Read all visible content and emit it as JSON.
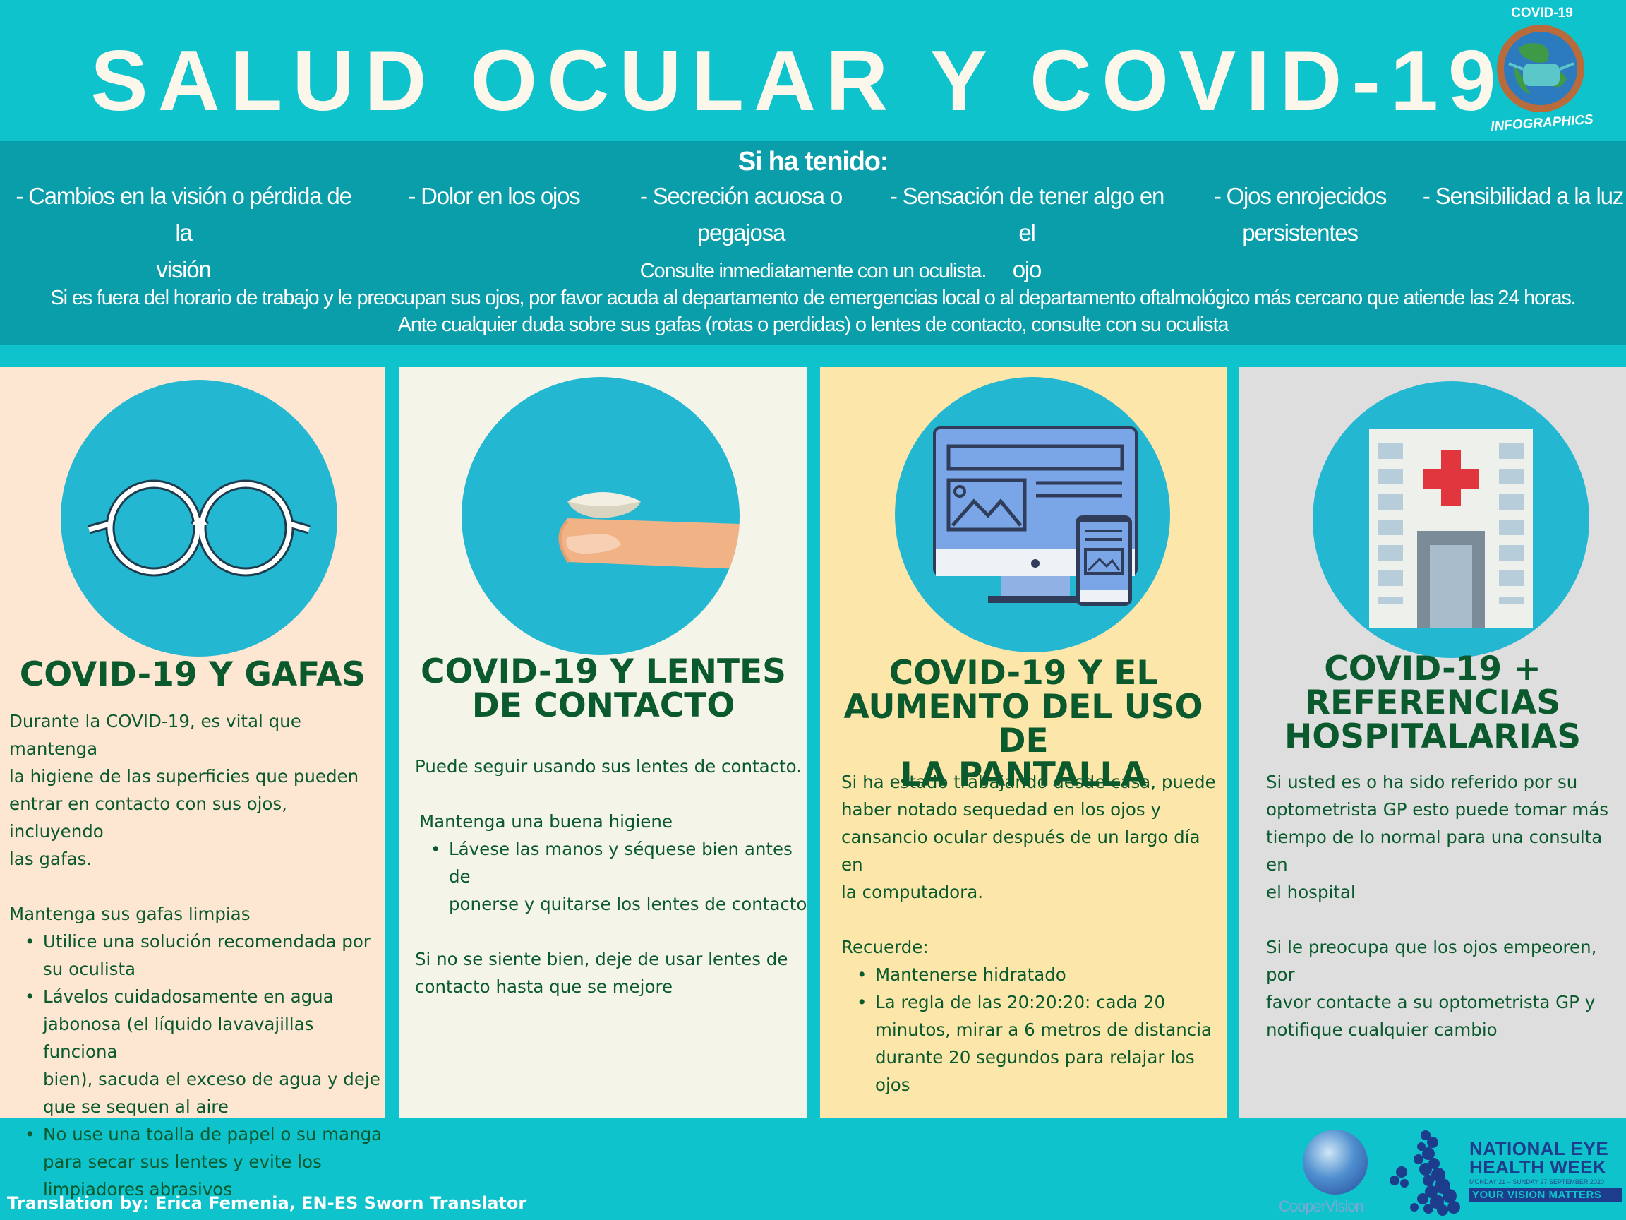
{
  "header": {
    "title": "SALUD OCULAR Y COVID-19",
    "badge_top": "COVID-19",
    "badge_bottom": "INFOGRAPHICS"
  },
  "band": {
    "heading": "Si ha tenido:",
    "symptoms": [
      {
        "line1": "- Cambios en la visión o pérdida de la",
        "line2": "visión"
      },
      {
        "line1": "- Dolor en los ojos",
        "line2": ""
      },
      {
        "line1": "- Secreción acuosa o",
        "line2": "pegajosa"
      },
      {
        "line1": "- Sensación de tener algo en el",
        "line2": "ojo"
      },
      {
        "line1": "- Ojos enrojecidos",
        "line2": "persistentes"
      },
      {
        "line1": "- Sensibilidad  a la luz",
        "line2": ""
      }
    ],
    "advice": [
      "Consulte inmediatamente con un oculista.",
      "Si es fuera del horario de trabajo y le preocupan sus ojos, por favor acuda al departamento de emergencias local o al departamento oftalmológico más cercano que atiende las 24 horas.",
      "Ante cualquier duda sobre sus gafas (rotas o perdidas) o lentes de contacto, consulte con su oculista"
    ]
  },
  "panels": {
    "glasses": {
      "title": "COVID-19 Y GAFAS",
      "intro": [
        "Durante la COVID-19,  es vital que mantenga",
        "la higiene de las superficies  que pueden",
        "entrar en contacto con sus ojos, incluyendo",
        "las gafas."
      ],
      "subhead": "Mantenga sus gafas limpias",
      "bullets": [
        [
          "Utilice una solución recomendada por",
          "su oculista"
        ],
        [
          "Lávelos cuidadosamente en agua",
          "jabonosa (el líquido lavavajillas funciona",
          "bien), sacuda el exceso de agua y deje",
          "que se sequen al aire"
        ],
        [
          "No use una toalla de papel o su manga",
          "para secar sus lentes y evite los",
          "limpiadores  abrasivos"
        ]
      ]
    },
    "contacts": {
      "title_line1": "COVID-19 Y LENTES",
      "title_line2": "DE CONTACTO",
      "intro": "Puede seguir usando sus lentes de contacto.",
      "subhead": "Mantenga una buena higiene",
      "bullets": [
        [
          "Lávese las manos y séquese bien antes de",
          "ponerse y quitarse los lentes de contacto"
        ]
      ],
      "outro": [
        "Si no se siente bien, deje de usar lentes de",
        "contacto hasta que se mejore"
      ]
    },
    "screens": {
      "title_line1": "COVID-19 Y EL",
      "title_line2": "AUMENTO DEL USO DE",
      "title_line3": "LA PANTALLA",
      "intro": [
        "Si ha estado trabajando desde casa, puede",
        "haber notado sequedad en los ojos y",
        "cansancio ocular después de un largo día en",
        "la computadora."
      ],
      "subhead": "Recuerde:",
      "bullets": [
        [
          "Mantenerse hidratado"
        ],
        [
          "La regla de las 20:20:20: cada 20",
          "minutos, mirar a 6 metros de distancia",
          "durante 20 segundos para relajar los",
          "ojos"
        ]
      ]
    },
    "hospital": {
      "title_line1": "COVID-19 +",
      "title_line2": "REFERENCIAS",
      "title_line3": "HOSPITALARIAS",
      "para1": [
        "Si usted es o ha sido referido  por su",
        "optometrista  GP esto puede tomar más",
        "tiempo de lo normal para una consulta en",
        "el hospital"
      ],
      "para2": [
        "Si le preocupa que los ojos empeoren,  por",
        "favor contacte a su optometrista GP y",
        "notifique cualquier cambio"
      ]
    }
  },
  "footer": {
    "credit": "Translation by: Erica Femenia, EN-ES Sworn Translator",
    "coopervision": "CooperVision",
    "neh_line1": "NATIONAL EYE",
    "neh_line2": "HEALTH WEEK",
    "neh_dates": "MONDAY 21 – SUNDAY 27 SEPTEMBER 2020",
    "neh_tagline": "YOUR VISION MATTERS"
  },
  "colors": {
    "background": "#0ec3cb",
    "band": "#0a9eab",
    "title_text": "#fbf7ea",
    "panel_text": "#0a5a2e",
    "icon_circle": "#24b7d1"
  }
}
